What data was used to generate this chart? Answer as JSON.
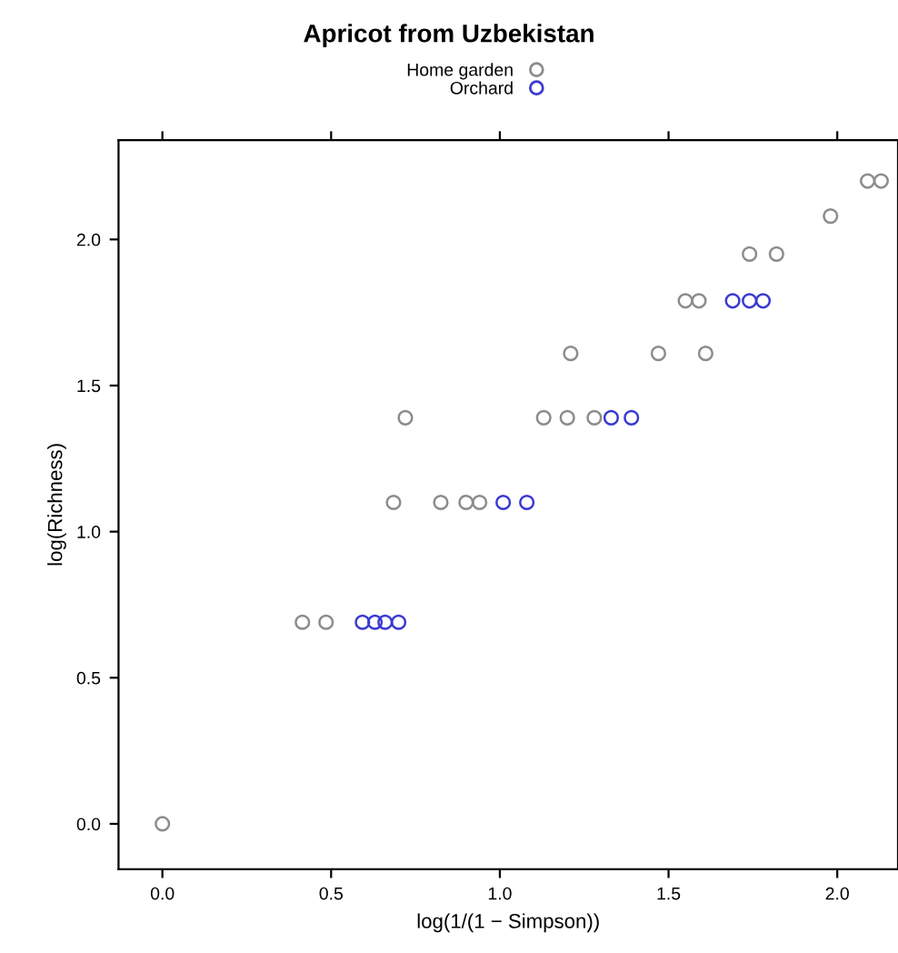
{
  "chart_data": {
    "type": "scatter",
    "title": "Apricot from Uzbekistan",
    "xlabel": "log(1/(1 − Simpson))",
    "ylabel": "log(Richness)",
    "series": [
      {
        "name": "Home garden",
        "color": "#8c8c8c",
        "x": [
          0.0,
          0.415,
          0.485,
          0.685,
          0.825,
          0.9,
          0.94,
          0.72,
          1.13,
          1.2,
          1.28,
          1.21,
          1.47,
          1.61,
          1.55,
          1.59,
          1.74,
          1.82,
          1.98,
          2.09,
          2.13
        ],
        "values": [
          0.0,
          0.69,
          0.69,
          1.1,
          1.1,
          1.1,
          1.1,
          1.39,
          1.39,
          1.39,
          1.39,
          1.61,
          1.61,
          1.61,
          1.79,
          1.79,
          1.95,
          1.95,
          2.08,
          2.2,
          2.2
        ]
      },
      {
        "name": "Orchard",
        "color": "#3a3ad0",
        "x": [
          0.593,
          0.63,
          0.66,
          0.7,
          1.01,
          1.08,
          1.33,
          1.39,
          1.69,
          1.74,
          1.78
        ],
        "values": [
          0.69,
          0.69,
          0.69,
          0.69,
          1.1,
          1.1,
          1.39,
          1.39,
          1.79,
          1.79,
          1.79
        ]
      }
    ],
    "xlim": [
      -0.13,
      2.18
    ],
    "ylim": [
      -0.155,
      2.34
    ],
    "xticks": [
      {
        "value": 0.0,
        "label": "0.0"
      },
      0.5,
      {
        "value": 1.0,
        "label": "1.0"
      },
      1.5,
      {
        "value": 2.0,
        "label": "2.0"
      }
    ],
    "yticks": [
      {
        "value": 0.0,
        "label": "0.0"
      },
      0.5,
      {
        "value": 1.0,
        "label": "1.0"
      },
      1.5,
      {
        "value": 2.0,
        "label": "2.0"
      }
    ],
    "marker": "circle",
    "legend": "top",
    "grid": false
  }
}
